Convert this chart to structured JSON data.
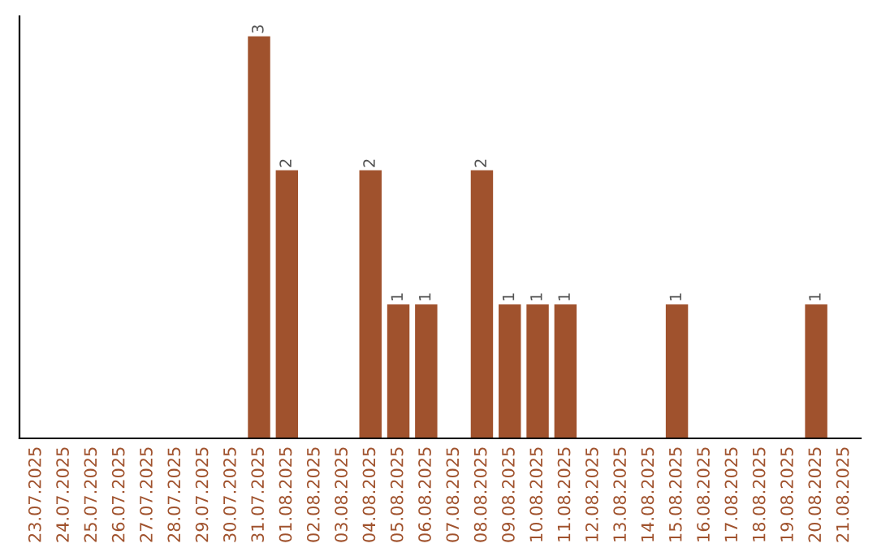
{
  "chart_data": {
    "type": "bar",
    "categories": [
      "23.07.2025",
      "24.07.2025",
      "25.07.2025",
      "26.07.2025",
      "27.07.2025",
      "28.07.2025",
      "29.07.2025",
      "30.07.2025",
      "31.07.2025",
      "01.08.2025",
      "02.08.2025",
      "03.08.2025",
      "04.08.2025",
      "05.08.2025",
      "06.08.2025",
      "07.08.2025",
      "08.08.2025",
      "09.08.2025",
      "10.08.2025",
      "11.08.2025",
      "12.08.2025",
      "13.08.2025",
      "14.08.2025",
      "15.08.2025",
      "16.08.2025",
      "17.08.2025",
      "18.08.2025",
      "19.08.2025",
      "20.08.2025",
      "21.08.2025"
    ],
    "values": [
      0,
      0,
      0,
      0,
      0,
      0,
      0,
      0,
      3,
      2,
      0,
      0,
      2,
      1,
      1,
      0,
      2,
      1,
      1,
      1,
      0,
      0,
      0,
      1,
      0,
      0,
      0,
      0,
      1,
      0
    ],
    "value_labels": [
      null,
      null,
      null,
      null,
      null,
      null,
      null,
      null,
      "3",
      "2",
      null,
      null,
      "2",
      "1",
      "1",
      null,
      "2",
      "1",
      "1",
      "1",
      null,
      null,
      null,
      "1",
      null,
      null,
      null,
      null,
      "1",
      null
    ],
    "color": "#a0522d",
    "grid": false,
    "legend": false
  }
}
